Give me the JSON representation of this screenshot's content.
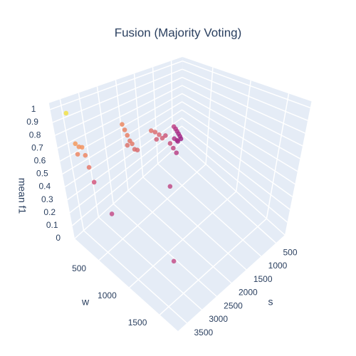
{
  "chart_data": {
    "type": "scatter3d",
    "title": "Fusion (Majority Voting)",
    "x_label": "s",
    "y_label": "w",
    "z_label": "mean f1",
    "xlim": [
      200,
      3800
    ],
    "ylim": [
      100,
      1800
    ],
    "zlim": [
      0,
      1.05
    ],
    "xticks": [
      500,
      1000,
      1500,
      2000,
      2500,
      3000,
      3500
    ],
    "yticks": [
      500,
      1000,
      1500
    ],
    "zticks": [
      0,
      0.1,
      0.2,
      0.3,
      0.4,
      0.5,
      0.6,
      0.7,
      0.8,
      0.9,
      1
    ],
    "grid": true,
    "series": [
      {
        "x": [
          3500,
          3480,
          3450,
          3420,
          3480,
          3400,
          3380,
          3350,
          2820,
          2800,
          2780,
          2760,
          2740,
          2780,
          2720,
          2700,
          2150,
          2100,
          2050,
          2000,
          2050,
          1950,
          1900,
          1850,
          1800,
          1850,
          1820,
          1800,
          1780,
          1760,
          1840,
          1750,
          1800,
          1780,
          2000,
          3440,
          2720
        ],
        "y": [
          150,
          200,
          230,
          260,
          210,
          280,
          300,
          330,
          560,
          580,
          600,
          620,
          640,
          590,
          660,
          690,
          620,
          650,
          680,
          700,
          640,
          720,
          760,
          780,
          800,
          790,
          800,
          810,
          820,
          830,
          790,
          840,
          820,
          800,
          800,
          610,
          1205
        ],
        "z": [
          0.95,
          0.72,
          0.7,
          0.7,
          0.64,
          0.64,
          0.55,
          0.44,
          0.88,
          0.84,
          0.8,
          0.76,
          0.74,
          0.72,
          0.7,
          0.7,
          0.76,
          0.75,
          0.73,
          0.7,
          0.68,
          0.72,
          0.66,
          0.62,
          0.58,
          0.8,
          0.78,
          0.76,
          0.74,
          0.72,
          0.7,
          0.7,
          0.68,
          0.68,
          0.34,
          0.31,
          0.06
        ],
        "colors": [
          "#f3e245",
          "#f59a5c",
          "#f39460",
          "#f39460",
          "#ef8864",
          "#ef8864",
          "#e67a6c",
          "#d4587e",
          "#ec8a62",
          "#ea8464",
          "#e88066",
          "#e27a6a",
          "#e27a6a",
          "#dc746c",
          "#da706e",
          "#d86c70",
          "#e07670",
          "#dc6e72",
          "#d86876",
          "#d46278",
          "#d06078",
          "#cc5a7c",
          "#c8527e",
          "#c04a84",
          "#b84286",
          "#c04888",
          "#b83c8a",
          "#b0368a",
          "#a8308a",
          "#a42c8a",
          "#b0388a",
          "#a02888",
          "#a83088",
          "#a42e88",
          "#c04c86",
          "#c4508a",
          "#c4508a"
        ]
      }
    ]
  }
}
